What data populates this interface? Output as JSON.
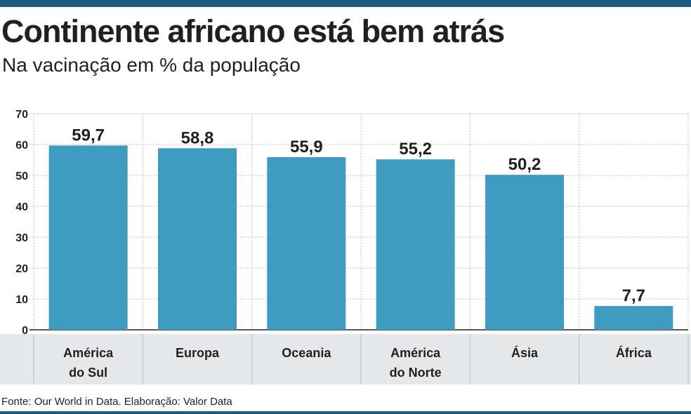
{
  "header": {
    "title": "Continente africano está bem atrás",
    "subtitle": "Na vacinação em % da população"
  },
  "footer": {
    "source": "Fonte: Our World in Data. Elaboração: Valor Data"
  },
  "colors": {
    "bar": "#3f9bbf",
    "category_band": "#e6e7e8",
    "rule": "#1c5d80",
    "grid": "#bcbec0",
    "text": "#231f20"
  },
  "chart_data": {
    "type": "bar",
    "title": "Continente africano está bem atrás",
    "subtitle": "Na vacinação em % da população",
    "categories": [
      [
        "América",
        "do Sul"
      ],
      [
        "Europa"
      ],
      [
        "Oceania"
      ],
      [
        "América",
        "do Norte"
      ],
      [
        "Ásia"
      ],
      [
        "África"
      ]
    ],
    "values": [
      59.7,
      58.8,
      55.9,
      55.2,
      50.2,
      7.7
    ],
    "value_labels": [
      "59,7",
      "58,8",
      "55,9",
      "55,2",
      "50,2",
      "7,7"
    ],
    "ylim": [
      0,
      70
    ],
    "yticks": [
      0,
      10,
      20,
      30,
      40,
      50,
      60,
      70
    ],
    "grid": true,
    "legend": "none"
  }
}
